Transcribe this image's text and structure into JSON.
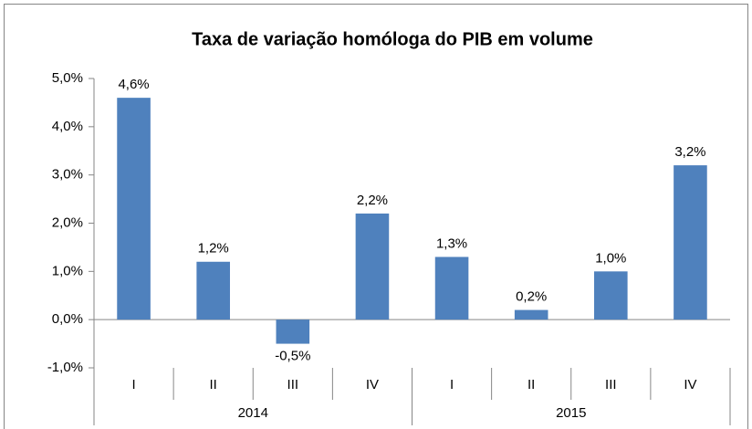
{
  "chart_data": {
    "type": "bar",
    "title": "Taxa de variação homóloga do PIB em volume",
    "categories": [
      "I",
      "II",
      "III",
      "IV",
      "I",
      "II",
      "III",
      "IV"
    ],
    "category_groups": [
      "2014",
      "2015"
    ],
    "values": [
      4.6,
      1.2,
      -0.5,
      2.2,
      1.3,
      0.2,
      1.0,
      3.2
    ],
    "value_labels": [
      "4,6%",
      "1,2%",
      "-0,5%",
      "2,2%",
      "1,3%",
      "0,2%",
      "1,0%",
      "3,2%"
    ],
    "color": "#4f81bd",
    "ylim": [
      -1,
      5
    ],
    "yticks": [
      {
        "value": -1,
        "label": "-1,0%"
      },
      {
        "value": 0,
        "label": "0,0%"
      },
      {
        "value": 1,
        "label": "1,0%"
      },
      {
        "value": 2,
        "label": "2,0%"
      },
      {
        "value": 3,
        "label": "3,0%"
      },
      {
        "value": 4,
        "label": "4,0%"
      },
      {
        "value": 5,
        "label": "5,0%"
      }
    ],
    "grid": false
  }
}
